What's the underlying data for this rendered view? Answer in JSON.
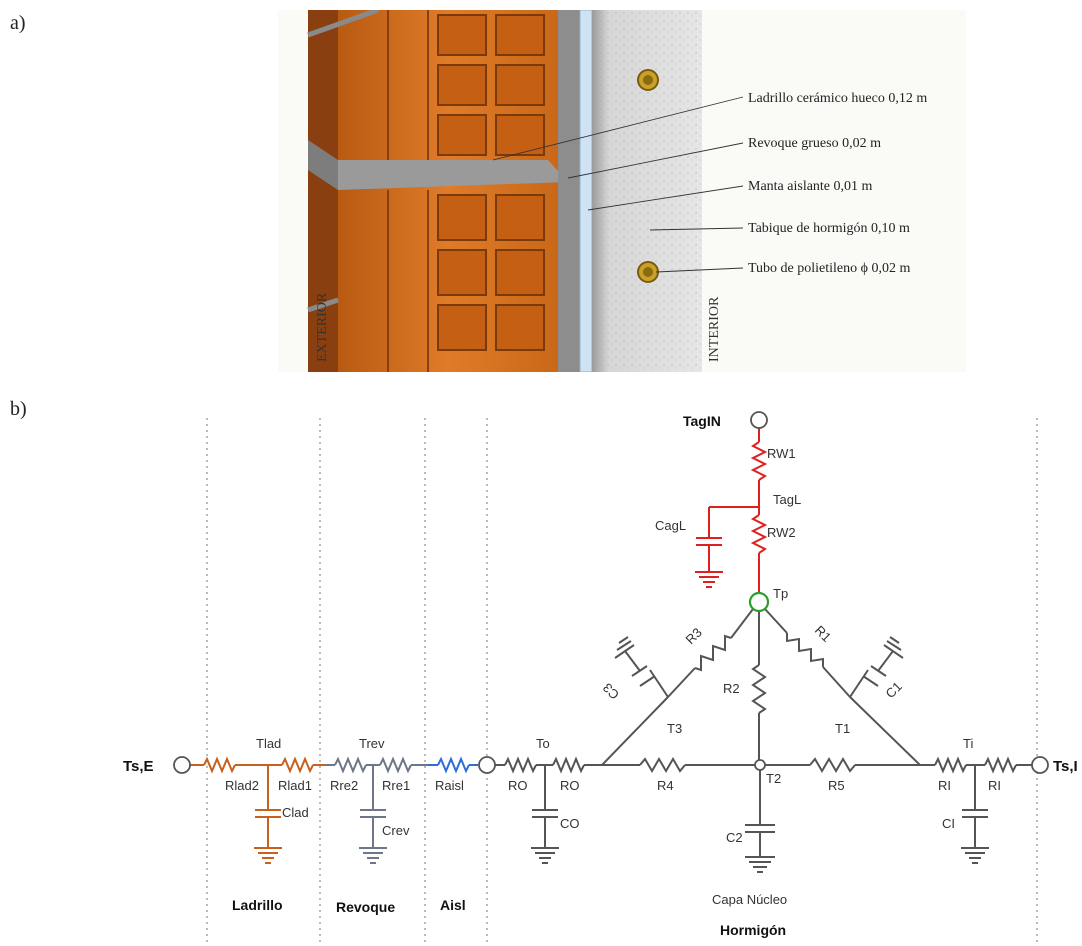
{
  "panels": {
    "a_label": "a)",
    "b_label": "b)"
  },
  "illustration": {
    "annotations": [
      "Ladrillo cerámico hueco 0,12 m",
      "Revoque grueso 0,02 m",
      "Manta aislante 0,01 m",
      "Tabique de hormigón 0,10 m",
      "Tubo de polietileno ϕ 0,02 m"
    ],
    "side_exterior": "EXTERIOR",
    "side_interior": "INTERIOR",
    "colors": {
      "brick": "#d9731f",
      "mortar": "#8e8e8e",
      "concrete": "#cfcfcf",
      "insulation": "#cfe3f5",
      "tube": "#c9a12a"
    }
  },
  "circuit": {
    "nodes": {
      "ts_e": "Ts,E",
      "ts_i": "Ts,I",
      "tlad": "Tlad",
      "trev": "Trev",
      "to": "To",
      "ti": "Ti",
      "tagin": "TagIN",
      "tagl": "TagL",
      "tp": "Tp",
      "t1": "T1",
      "t2": "T2",
      "t3": "T3"
    },
    "components": {
      "rlad2": "Rlad2",
      "rlad1": "Rlad1",
      "clad": "Clad",
      "rre2": "Rre2",
      "rre1": "Rre1",
      "crev": "Crev",
      "raisl": "Raisl",
      "ro_1": "RO",
      "ro_2": "RO",
      "co": "CO",
      "r4": "R4",
      "r5": "R5",
      "c2": "C2",
      "ri_1": "RI",
      "ri_2": "RI",
      "ci": "CI",
      "rw1": "RW1",
      "rw2": "RW2",
      "cagl": "CagL",
      "r1": "R1",
      "r2": "R2",
      "r3": "R3",
      "c1": "C1",
      "c3": "C3"
    },
    "layers": {
      "ladrillo": "Ladrillo",
      "revoque": "Revoque",
      "aisl": "Aisl",
      "capa_nucleo": "Capa Núcleo",
      "hormigon": "Hormigón"
    },
    "colors": {
      "ladrillo": "#c8611e",
      "revoque": "#6e7788",
      "aisl": "#2e6fd6",
      "hormigon": "#555555",
      "water": "#e02020",
      "tp_node": "#2a9d2a"
    }
  }
}
